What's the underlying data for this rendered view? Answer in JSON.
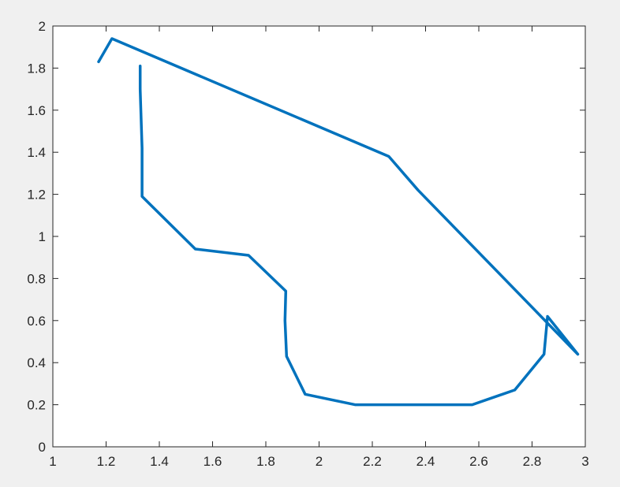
{
  "chart_data": {
    "type": "line",
    "title": "",
    "xlabel": "",
    "ylabel": "",
    "xlim": [
      1,
      3
    ],
    "ylim": [
      0,
      2
    ],
    "grid": false,
    "x_ticks": [
      1,
      1.2,
      1.4,
      1.6,
      1.8,
      2,
      2.2,
      2.4,
      2.6,
      2.8,
      3
    ],
    "x_tick_labels": [
      "1",
      "1.2",
      "1.4",
      "1.6",
      "1.8",
      "2",
      "2.2",
      "2.4",
      "2.6",
      "2.8",
      "3"
    ],
    "y_ticks": [
      0,
      0.2,
      0.4,
      0.6,
      0.8,
      1,
      1.2,
      1.4,
      1.6,
      1.8,
      2
    ],
    "y_tick_labels": [
      "0",
      "0.2",
      "0.4",
      "0.6",
      "0.8",
      "1",
      "1.2",
      "1.4",
      "1.6",
      "1.8",
      "2"
    ],
    "series": [
      {
        "color": "#0072bd",
        "x": [
          1.328,
          1.328,
          1.335,
          1.335,
          1.535,
          1.735,
          1.875,
          1.872,
          1.878,
          1.948,
          2.135,
          2.325,
          2.575,
          2.735,
          2.845,
          2.858,
          2.972,
          2.372,
          2.262,
          1.222,
          1.172
        ],
        "y": [
          1.81,
          1.7,
          1.42,
          1.19,
          0.94,
          0.91,
          0.74,
          0.6,
          0.43,
          0.25,
          0.2,
          0.2,
          0.2,
          0.27,
          0.44,
          0.62,
          0.44,
          1.22,
          1.38,
          1.94,
          1.83
        ]
      }
    ]
  }
}
